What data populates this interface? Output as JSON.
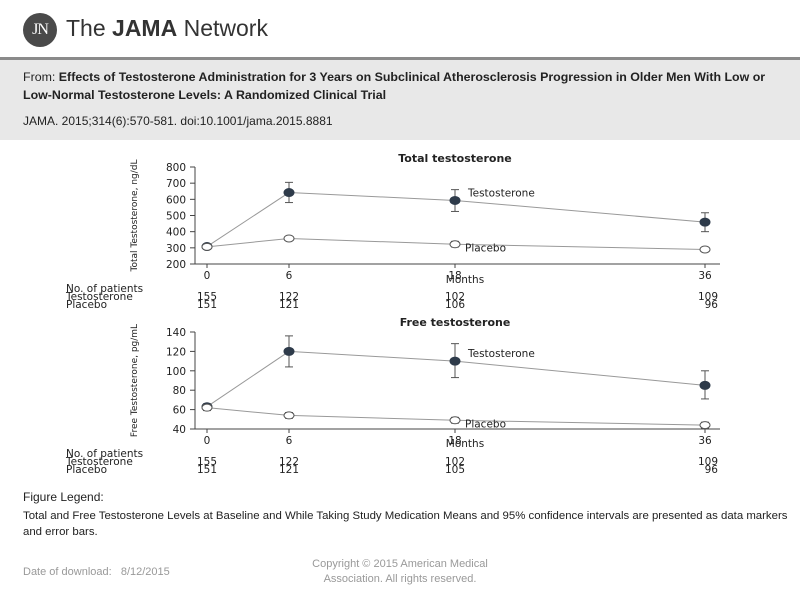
{
  "header": {
    "logo_text": "JN",
    "brand_prefix": "The ",
    "brand_bold": "JAMA",
    "brand_suffix": " Network"
  },
  "citation": {
    "from_label": "From: ",
    "title": "Effects of Testosterone Administration for 3 Years on Subclinical Atherosclerosis Progression in Older Men With Low or Low-Normal Testosterone Levels: A Randomized Clinical Trial",
    "reference": "JAMA. 2015;314(6):570-581. doi:10.1001/jama.2015.8881"
  },
  "legend": {
    "title": "Figure Legend:",
    "text": "Total and Free Testosterone Levels at Baseline and While Taking Study Medication Means and 95% confidence intervals are presented as data markers and error bars."
  },
  "footer": {
    "date_label": "Date of download:",
    "date_value": "8/12/2015",
    "copyright_line1": "Copyright © 2015 American Medical",
    "copyright_line2": "Association. All rights reserved."
  },
  "chart_data": [
    {
      "type": "line",
      "title": "Total testosterone",
      "xlabel": "Months",
      "ylabel": "Total Testosterone, ng/dL",
      "x": [
        0,
        6,
        18,
        36
      ],
      "ylim": [
        200,
        800
      ],
      "yticks": [
        200,
        300,
        400,
        500,
        600,
        700,
        800
      ],
      "series": [
        {
          "name": "Testosterone",
          "marker": "filled",
          "values": [
            308,
            642,
            593,
            459
          ],
          "ci_low": [
            300,
            580,
            525,
            400
          ],
          "ci_high": [
            316,
            705,
            660,
            517
          ]
        },
        {
          "name": "Placebo",
          "marker": "open",
          "values": [
            306,
            358,
            322,
            290
          ],
          "ci_low": [
            298,
            345,
            305,
            275
          ],
          "ci_high": [
            314,
            372,
            340,
            305
          ]
        }
      ],
      "patients_header": "No. of patients",
      "patients": [
        {
          "label": "Testosterone",
          "counts": [
            "155",
            "122",
            "102",
            "109"
          ]
        },
        {
          "label": "Placebo",
          "counts": [
            "151",
            "121",
            "106",
            "96"
          ]
        }
      ]
    },
    {
      "type": "line",
      "title": "Free testosterone",
      "xlabel": "Months",
      "ylabel": "Free Testosterone, pg/mL",
      "x": [
        0,
        6,
        18,
        36
      ],
      "ylim": [
        40,
        140
      ],
      "yticks": [
        40,
        60,
        80,
        100,
        120,
        140
      ],
      "series": [
        {
          "name": "Testosterone",
          "marker": "filled",
          "values": [
            63,
            120,
            110,
            85
          ],
          "ci_low": [
            60,
            104,
            93,
            71
          ],
          "ci_high": [
            66,
            136,
            128,
            100
          ]
        },
        {
          "name": "Placebo",
          "marker": "open",
          "values": [
            62,
            54,
            49,
            44
          ],
          "ci_low": [
            59,
            51,
            46,
            41
          ],
          "ci_high": [
            65,
            57,
            52,
            47
          ]
        }
      ],
      "patients_header": "No. of patients",
      "patients": [
        {
          "label": "Testosterone",
          "counts": [
            "155",
            "122",
            "102",
            "109"
          ]
        },
        {
          "label": "Placebo",
          "counts": [
            "151",
            "121",
            "105",
            "96"
          ]
        }
      ]
    }
  ]
}
